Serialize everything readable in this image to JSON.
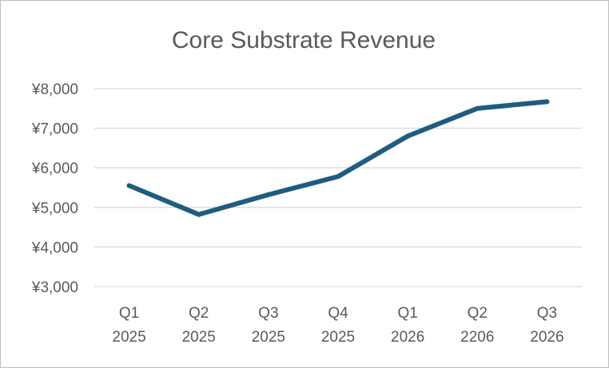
{
  "chart_data": {
    "type": "line",
    "title": "Core Substrate Revenue",
    "xlabel": "",
    "ylabel": "",
    "categories": [
      [
        "Q1",
        "2025"
      ],
      [
        "Q2",
        "2025"
      ],
      [
        "Q3",
        "2025"
      ],
      [
        "Q4",
        "2025"
      ],
      [
        "Q1",
        "2026"
      ],
      [
        "Q2",
        "2206"
      ],
      [
        "Q3",
        "2026"
      ]
    ],
    "series": [
      {
        "name": "Core Substrate Revenue",
        "color": "#1f5c80",
        "values": [
          5550,
          4820,
          5320,
          5780,
          6800,
          7500,
          7670
        ]
      }
    ],
    "ylim": [
      3000,
      8000
    ],
    "yticks": [
      3000,
      4000,
      5000,
      6000,
      7000,
      8000
    ],
    "ytick_labels": [
      "¥3,000",
      "¥4,000",
      "¥5,000",
      "¥6,000",
      "¥7,000",
      "¥8,000"
    ],
    "grid": true,
    "legend": "none"
  }
}
